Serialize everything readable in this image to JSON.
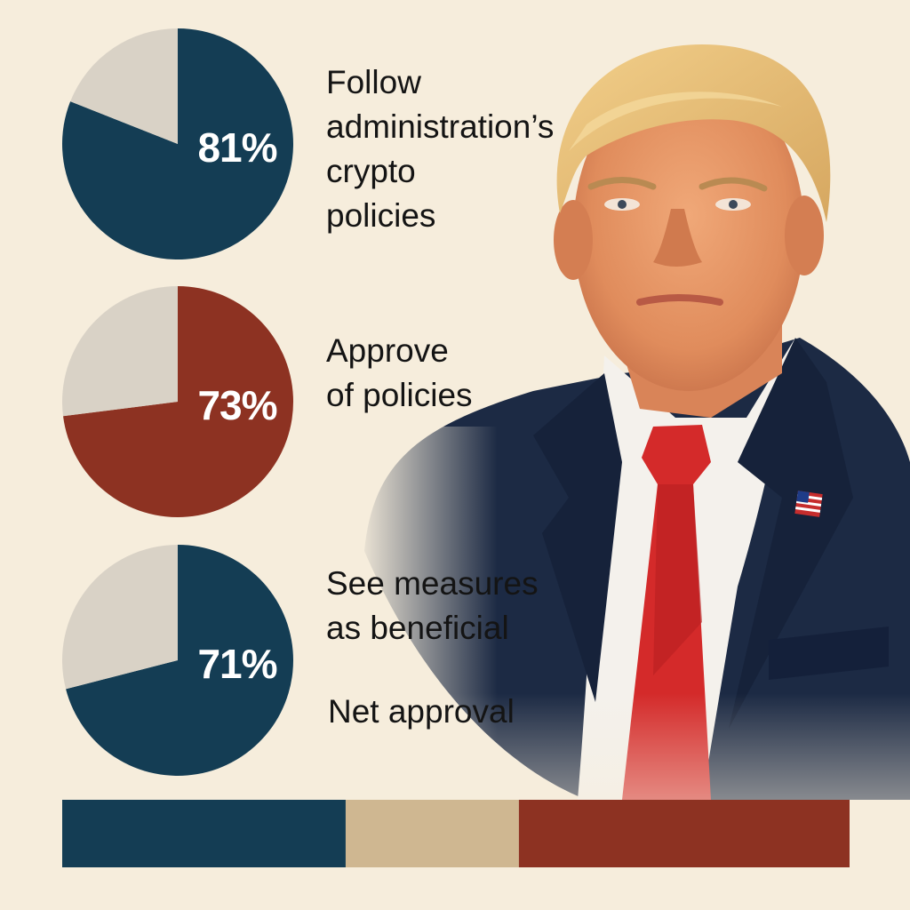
{
  "colors": {
    "background": "#f6eddc",
    "navy": "#143d54",
    "rust": "#8d3222",
    "remainder": "#d9d2c6",
    "tan": "#cfb791",
    "suit": "#1c2a44",
    "tie": "#d42a2a"
  },
  "chart_data": [
    {
      "type": "pie",
      "slices": [
        {
          "label": "Follow administration’s crypto policies",
          "value": 81,
          "color": "#143d54"
        },
        {
          "label": "",
          "value": 19,
          "color": "#d9d2c6"
        }
      ],
      "value_label": "81%",
      "lines": [
        "Follow",
        "administration’s",
        "crypto",
        "policies"
      ]
    },
    {
      "type": "pie",
      "slices": [
        {
          "label": "Approve of policies",
          "value": 73,
          "color": "#8d3222"
        },
        {
          "label": "",
          "value": 27,
          "color": "#d9d2c6"
        }
      ],
      "value_label": "73%",
      "lines": [
        "Approve",
        "of policies"
      ]
    },
    {
      "type": "pie",
      "slices": [
        {
          "label": "See measures as beneficial",
          "value": 71,
          "color": "#143d54"
        },
        {
          "label": "",
          "value": 29,
          "color": "#d9d2c6"
        }
      ],
      "value_label": "71%",
      "lines": [
        "See measures",
        "as beneficial"
      ]
    },
    {
      "type": "bar",
      "title": "Net approval",
      "segments": [
        {
          "value": 36,
          "color": "#143d54"
        },
        {
          "value": 22,
          "color": "#cfb791"
        },
        {
          "value": 42,
          "color": "#8d3222"
        }
      ]
    }
  ],
  "portrait": {
    "subject": "man-in-suit",
    "pin": "american-flag-pin-icon"
  }
}
